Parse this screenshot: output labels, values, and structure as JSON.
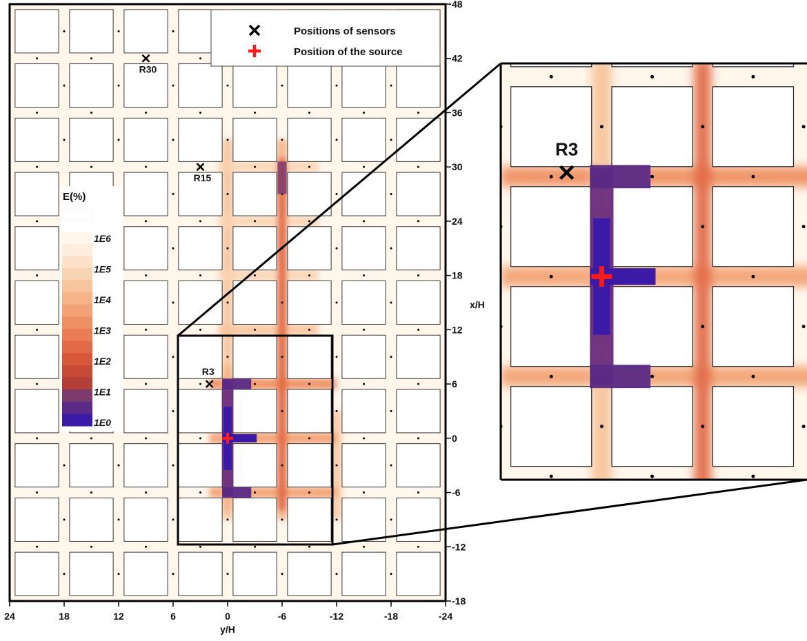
{
  "chart_data": {
    "type": "heatmap",
    "title": "",
    "xlabel": "y/H",
    "ylabel": "x/H",
    "xlim": [
      24,
      -24
    ],
    "ylim": [
      -18,
      48
    ],
    "x_ticks": [
      "24",
      "18",
      "12",
      "6",
      "0",
      "-6",
      "-12",
      "-18",
      "-24"
    ],
    "y_ticks": [
      "-18",
      "-12",
      "-6",
      "0",
      "6",
      "12",
      "18",
      "24",
      "30",
      "36",
      "42",
      "48"
    ],
    "colorbar": {
      "title": "E(%)",
      "labels": [
        "1E6",
        "1E5",
        "1E4",
        "1E3",
        "1E2",
        "1E1",
        "1E0"
      ],
      "colors_high_to_low": [
        "#fff6ec",
        "#fdeedd",
        "#fbe2c8",
        "#f9d4b2",
        "#f7c49c",
        "#f5b387",
        "#f2a274",
        "#ef9063",
        "#ea7d54",
        "#e26a46",
        "#d7583a",
        "#c84a35",
        "#b33f38",
        "#7d3a6c",
        "#5a2a86",
        "#3a1aa6"
      ]
    },
    "legend": {
      "placement": "top",
      "entries": [
        {
          "label": "Positions of sensors",
          "marker": "x",
          "color": "#000000"
        },
        {
          "label": "Position of the source",
          "marker": "+",
          "color": "#ff1a1a"
        }
      ]
    },
    "source": {
      "y": 0,
      "x": 0
    },
    "sensors": [
      {
        "name": "R30",
        "y": 9,
        "x": 42
      },
      {
        "name": "R15",
        "y": 3,
        "x": 30
      },
      {
        "name": "R3",
        "y": 2,
        "x": 6
      }
    ],
    "street_spacing": 6,
    "zoom_region": {
      "y": [
        6,
        -12
      ],
      "x": [
        -12,
        12
      ]
    },
    "inset": {
      "label": "R3"
    }
  }
}
